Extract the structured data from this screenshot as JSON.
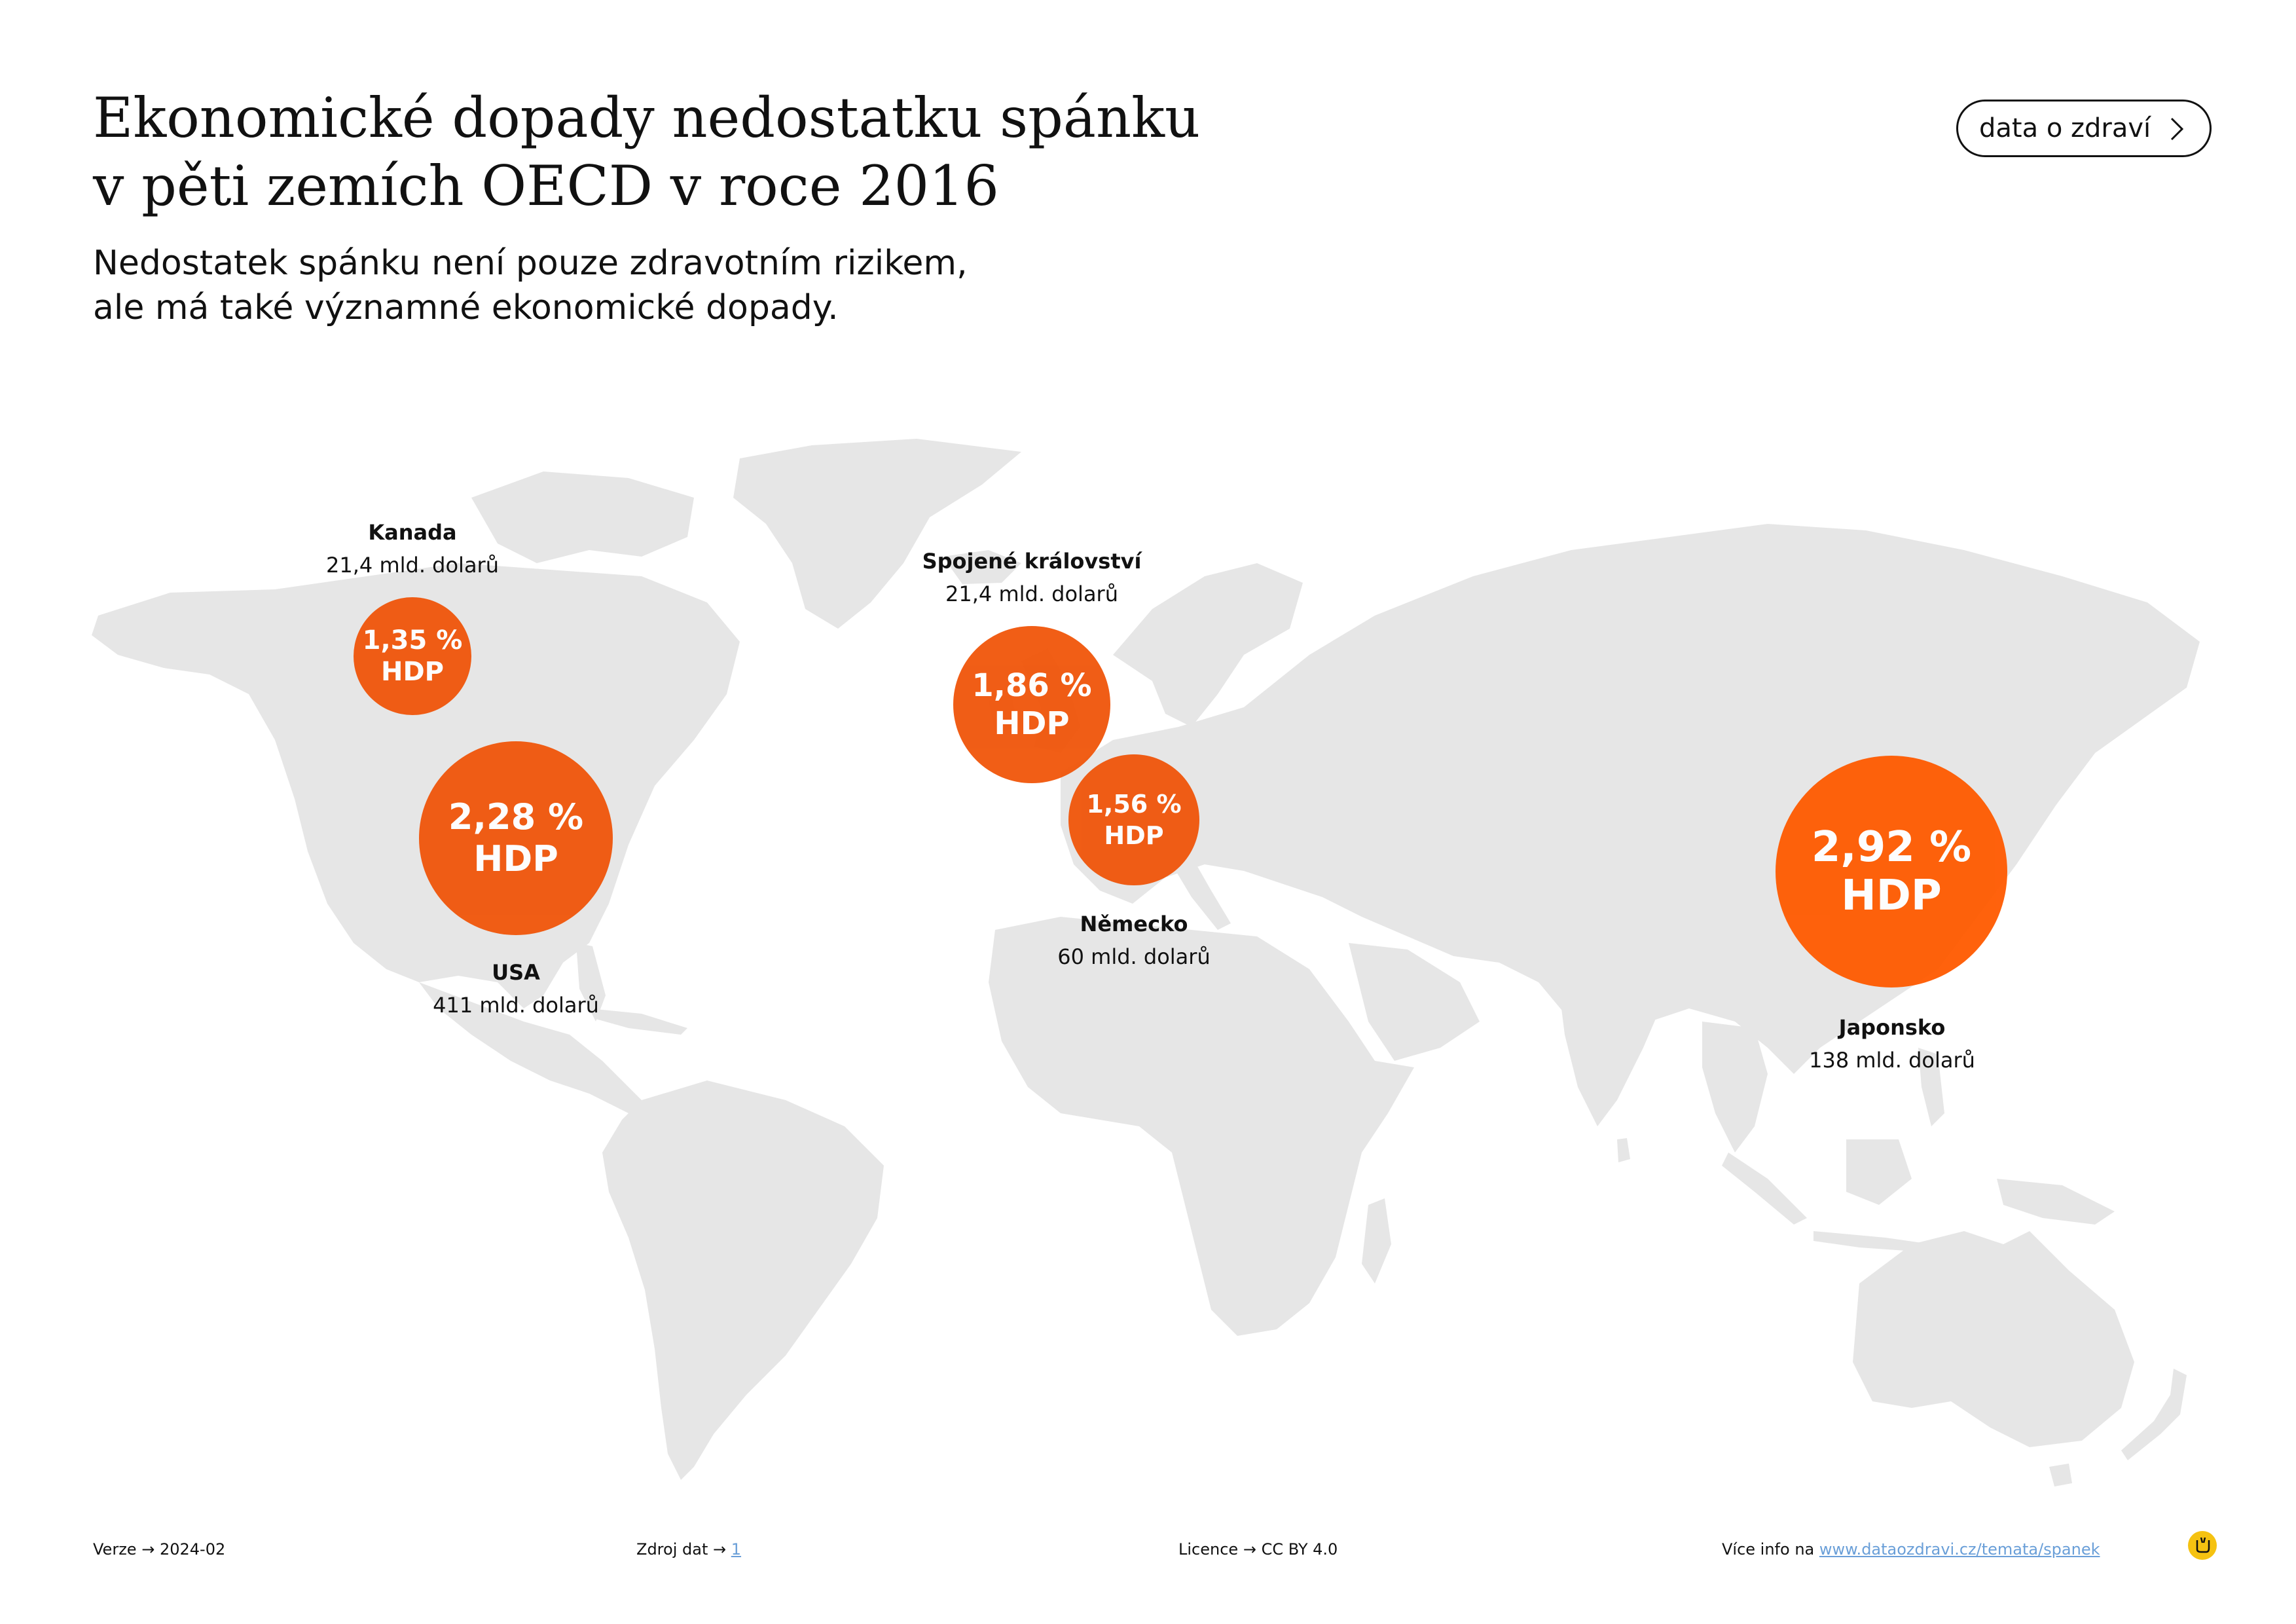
{
  "title_line1": "Ekonomické dopady nedostatku spánku",
  "title_line2": "v pěti zemích OECD v roce 2016",
  "subtitle_line1": "Nedostatek spánku není pouze zdravotním rizikem,",
  "subtitle_line2": "ale má také významné ekonomické dopady.",
  "tag_button": "data o zdraví",
  "colors": {
    "bubble": "#f0550a",
    "land": "#e6e6e6",
    "text": "#111111",
    "link": "#6a9fd8"
  },
  "countries": [
    {
      "name": "Kanada",
      "amount": "21,4 mld. dolarů",
      "percent": "1,35 %",
      "unit": "HDP",
      "gdp_share": 1.35
    },
    {
      "name": "USA",
      "amount": "411 mld. dolarů",
      "percent": "2,28 %",
      "unit": "HDP",
      "gdp_share": 2.28
    },
    {
      "name": "Spojené království",
      "amount": "21,4 mld. dolarů",
      "percent": "1,86 %",
      "unit": "HDP",
      "gdp_share": 1.86
    },
    {
      "name": "Německo",
      "amount": "60 mld. dolarů",
      "percent": "1,56 %",
      "unit": "HDP",
      "gdp_share": 1.56
    },
    {
      "name": "Japonsko",
      "amount": "138 mld. dolarů",
      "percent": "2,92 %",
      "unit": "HDP",
      "gdp_share": 2.92
    }
  ],
  "footer": {
    "version_label": "Verze",
    "version": "2024-02",
    "source_label": "Zdroj dat",
    "source": "1",
    "license_label": "Licence",
    "license": "CC BY 4.0",
    "more_label": "Více info na",
    "more_url": "www.dataozdravi.cz/temata/spanek",
    "arrow": "→"
  },
  "icons": {
    "button_chevron": "chevron-right-icon",
    "logo": "dataozdravi-logo-icon"
  }
}
